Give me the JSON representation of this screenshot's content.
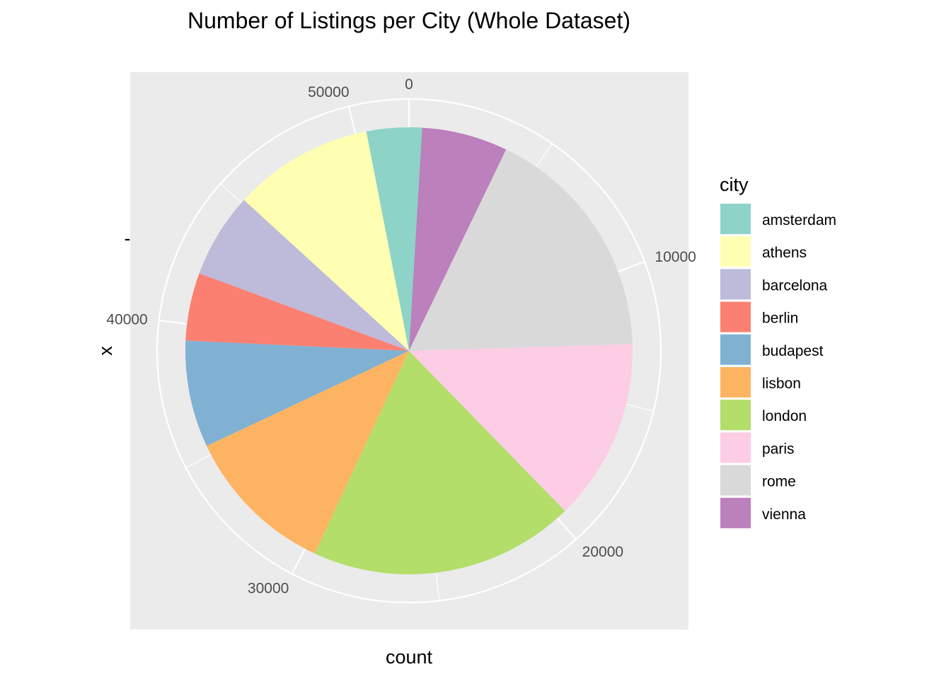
{
  "chart_data": {
    "type": "pie",
    "title": "Number of Listings per City (Whole Dataset)",
    "xlabel": "count",
    "ylabel": "x",
    "y_tick_label": "-",
    "value_axis": {
      "min": 0,
      "max": 52000,
      "ticks": [
        0,
        10000,
        20000,
        30000,
        40000,
        50000
      ]
    },
    "grid": true,
    "legend": {
      "title": "city",
      "position": "right"
    },
    "colors": {
      "panel_bg": "#ebebeb",
      "grid": "#ffffff",
      "tick_text": "#4d4d4d",
      "text": "#000000"
    },
    "slices": [
      {
        "city": "amsterdam",
        "value": 2080,
        "color": "#8dd3c7"
      },
      {
        "city": "athens",
        "value": 5280,
        "color": "#ffffb3"
      },
      {
        "city": "barcelona",
        "value": 3200,
        "color": "#bebada"
      },
      {
        "city": "berlin",
        "value": 2550,
        "color": "#fb8072"
      },
      {
        "city": "budapest",
        "value": 4020,
        "color": "#80b1d3"
      },
      {
        "city": "lisbon",
        "value": 5760,
        "color": "#fdb462"
      },
      {
        "city": "london",
        "value": 9990,
        "color": "#b3de69"
      },
      {
        "city": "paris",
        "value": 6860,
        "color": "#fccde5"
      },
      {
        "city": "rome",
        "value": 9030,
        "color": "#d9d9d9"
      },
      {
        "city": "vienna",
        "value": 3720,
        "color": "#bc80bd"
      }
    ]
  }
}
